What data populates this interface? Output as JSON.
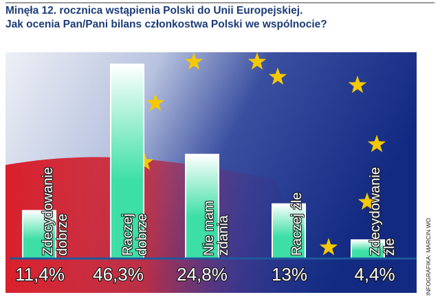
{
  "chart_data": {
    "type": "bar",
    "title": "Minęła 12. rocznica wstąpienia Polski do Unii Europejskiej.",
    "subtitle": "Jak ocenia Pan/Pani bilans członkostwa Polski we wspólnocie?",
    "categories": [
      "Zdecydowanie dobrze",
      "Raczej dobrze",
      "Nie mam zdania",
      "Raczej źle",
      "Zdecydowanie źle"
    ],
    "values": [
      11.4,
      46.3,
      24.8,
      13,
      4.4
    ],
    "value_labels": [
      "11,4%",
      "46,3%",
      "24,8%",
      "13%",
      "4,4%"
    ],
    "color": "#3ddfa6",
    "credit": "INFOGRAFIKA: MARCIN WO"
  }
}
